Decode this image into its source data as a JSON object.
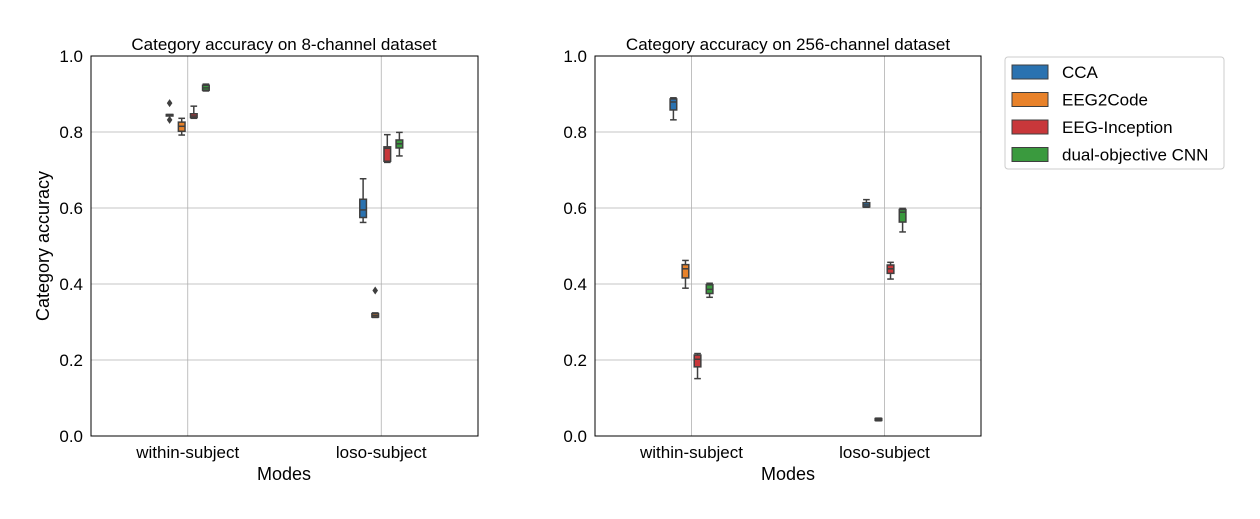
{
  "legend": {
    "placement": "outside-right",
    "entries": [
      {
        "name": "CCA",
        "color": "#2a72b0"
      },
      {
        "name": "EEG2Code",
        "color": "#e8822a"
      },
      {
        "name": "EEG-Inception",
        "color": "#c8373a"
      },
      {
        "name": "dual-objective CNN",
        "color": "#3a9a3e"
      }
    ]
  },
  "chart_data": [
    {
      "type": "box",
      "title": "Category accuracy on 8-channel dataset",
      "xlabel": "Modes",
      "ylabel": "Category accuracy",
      "ylim": [
        0.0,
        1.0
      ],
      "yticks": [
        "0.0",
        "0.2",
        "0.4",
        "0.6",
        "0.8",
        "1.0"
      ],
      "grid": true,
      "categories": [
        "within-subject",
        "loso-subject"
      ],
      "series": [
        {
          "name": "CCA",
          "boxes": [
            {
              "whislo": 0.843,
              "q1": 0.843,
              "med": 0.844,
              "q3": 0.846,
              "whishi": 0.846,
              "fliers": [
                0.876,
                0.832
              ]
            },
            {
              "whislo": 0.562,
              "q1": 0.575,
              "med": 0.595,
              "q3": 0.623,
              "whishi": 0.677,
              "fliers": []
            }
          ]
        },
        {
          "name": "EEG2Code",
          "boxes": [
            {
              "whislo": 0.792,
              "q1": 0.802,
              "med": 0.815,
              "q3": 0.826,
              "whishi": 0.836,
              "fliers": []
            },
            {
              "whislo": 0.312,
              "q1": 0.313,
              "med": 0.317,
              "q3": 0.322,
              "whishi": 0.324,
              "fliers": [
                0.383
              ]
            }
          ]
        },
        {
          "name": "EEG-Inception",
          "boxes": [
            {
              "whislo": 0.836,
              "q1": 0.838,
              "med": 0.842,
              "q3": 0.848,
              "whishi": 0.868,
              "fliers": []
            },
            {
              "whislo": 0.72,
              "q1": 0.723,
              "med": 0.757,
              "q3": 0.761,
              "whishi": 0.793,
              "fliers": []
            }
          ]
        },
        {
          "name": "dual-objective CNN",
          "boxes": [
            {
              "whislo": 0.908,
              "q1": 0.91,
              "med": 0.916,
              "q3": 0.923,
              "whishi": 0.926,
              "fliers": []
            },
            {
              "whislo": 0.737,
              "q1": 0.758,
              "med": 0.769,
              "q3": 0.779,
              "whishi": 0.799,
              "fliers": []
            }
          ]
        }
      ]
    },
    {
      "type": "box",
      "title": "Category accuracy on 256-channel dataset",
      "xlabel": "Modes",
      "ylabel": "",
      "ylim": [
        0.0,
        1.0
      ],
      "yticks": [
        "0.0",
        "0.2",
        "0.4",
        "0.6",
        "0.8",
        "1.0"
      ],
      "grid": true,
      "categories": [
        "within-subject",
        "loso-subject"
      ],
      "series": [
        {
          "name": "CCA",
          "boxes": [
            {
              "whislo": 0.832,
              "q1": 0.858,
              "med": 0.879,
              "q3": 0.887,
              "whishi": 0.89,
              "fliers": []
            },
            {
              "whislo": 0.602,
              "q1": 0.603,
              "med": 0.608,
              "q3": 0.614,
              "whishi": 0.622,
              "fliers": []
            }
          ]
        },
        {
          "name": "EEG2Code",
          "boxes": [
            {
              "whislo": 0.389,
              "q1": 0.416,
              "med": 0.44,
              "q3": 0.451,
              "whishi": 0.462,
              "fliers": []
            },
            {
              "whislo": 0.04,
              "q1": 0.041,
              "med": 0.043,
              "q3": 0.046,
              "whishi": 0.047,
              "fliers": []
            }
          ]
        },
        {
          "name": "EEG-Inception",
          "boxes": [
            {
              "whislo": 0.151,
              "q1": 0.182,
              "med": 0.202,
              "q3": 0.213,
              "whishi": 0.217,
              "fliers": []
            },
            {
              "whislo": 0.413,
              "q1": 0.428,
              "med": 0.44,
              "q3": 0.45,
              "whishi": 0.457,
              "fliers": []
            }
          ]
        },
        {
          "name": "dual-objective CNN",
          "boxes": [
            {
              "whislo": 0.365,
              "q1": 0.375,
              "med": 0.386,
              "q3": 0.398,
              "whishi": 0.402,
              "fliers": []
            },
            {
              "whislo": 0.537,
              "q1": 0.563,
              "med": 0.589,
              "q3": 0.596,
              "whishi": 0.599,
              "fliers": []
            }
          ]
        }
      ]
    }
  ]
}
